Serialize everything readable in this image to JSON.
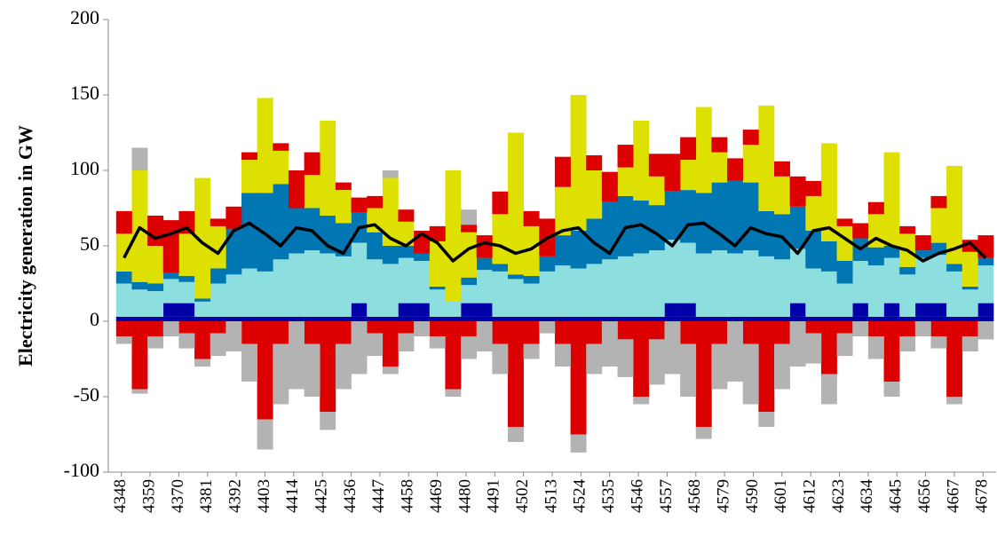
{
  "chart_data": {
    "type": "bar",
    "y_label": "Electricity generation in GW",
    "xlim": [
      4343,
      4683
    ],
    "xticks": [
      4348,
      4359,
      4370,
      4381,
      4392,
      4403,
      4414,
      4425,
      4436,
      4447,
      4458,
      4469,
      4480,
      4491,
      4502,
      4513,
      4524,
      4535,
      4546,
      4557,
      4568,
      4579,
      4590,
      4601,
      4612,
      4623,
      4634,
      4645,
      4656,
      4667,
      4678
    ],
    "ylim": [
      -100,
      200
    ],
    "yticks": [
      -100,
      -50,
      0,
      50,
      100,
      150,
      200
    ],
    "x": [
      4349,
      4355,
      4361,
      4367,
      4373,
      4379,
      4385,
      4391,
      4397,
      4403,
      4409,
      4415,
      4421,
      4427,
      4433,
      4439,
      4445,
      4451,
      4457,
      4463,
      4469,
      4475,
      4481,
      4487,
      4493,
      4499,
      4505,
      4511,
      4517,
      4523,
      4529,
      4535,
      4541,
      4547,
      4553,
      4559,
      4565,
      4571,
      4577,
      4583,
      4589,
      4595,
      4601,
      4607,
      4613,
      4619,
      4625,
      4631,
      4637,
      4643,
      4649,
      4655,
      4661,
      4667,
      4673,
      4679
    ],
    "series": [
      {
        "color": "#0000a8",
        "values": [
          3,
          3,
          3,
          3,
          3,
          3,
          3,
          3,
          3,
          3,
          3,
          3,
          3,
          3,
          3,
          3,
          3,
          3,
          3,
          3,
          3,
          3,
          3,
          3,
          3,
          3,
          3,
          3,
          3,
          3,
          3,
          3,
          3,
          3,
          3,
          3,
          3,
          3,
          3,
          3,
          3,
          3,
          3,
          3,
          3,
          3,
          3,
          3,
          3,
          3,
          3,
          3,
          3,
          3,
          3,
          3
        ]
      },
      {
        "color": "#0000a8",
        "values": [
          0,
          0,
          0,
          9,
          9,
          0,
          0,
          0,
          0,
          0,
          0,
          0,
          0,
          0,
          0,
          9,
          0,
          0,
          9,
          9,
          0,
          0,
          9,
          9,
          0,
          0,
          0,
          0,
          0,
          0,
          0,
          0,
          0,
          0,
          0,
          9,
          9,
          0,
          0,
          0,
          0,
          0,
          0,
          9,
          0,
          0,
          0,
          9,
          0,
          9,
          0,
          9,
          9,
          0,
          0,
          9
        ]
      },
      {
        "color": "#8ddfdf",
        "values": [
          22,
          18,
          17,
          16,
          14,
          10,
          22,
          28,
          32,
          30,
          38,
          42,
          44,
          42,
          40,
          40,
          38,
          35,
          30,
          28,
          18,
          10,
          12,
          22,
          30,
          25,
          22,
          30,
          34,
          32,
          35,
          38,
          40,
          42,
          44,
          42,
          40,
          42,
          44,
          42,
          44,
          40,
          38,
          36,
          32,
          30,
          22,
          28,
          34,
          30,
          28,
          30,
          32,
          30,
          18,
          25
        ]
      },
      {
        "color": "#0077b3",
        "values": [
          8,
          5,
          5,
          4,
          4,
          2,
          10,
          30,
          50,
          52,
          50,
          30,
          28,
          25,
          22,
          20,
          18,
          12,
          8,
          5,
          2,
          0,
          5,
          8,
          5,
          3,
          5,
          10,
          20,
          25,
          30,
          38,
          40,
          35,
          30,
          32,
          35,
          40,
          45,
          48,
          45,
          30,
          30,
          28,
          25,
          20,
          15,
          15,
          12,
          8,
          5,
          5,
          8,
          5,
          2,
          5
        ]
      },
      {
        "color": "#dde000",
        "values": [
          25,
          74,
          25,
          0,
          28,
          80,
          28,
          0,
          22,
          63,
          22,
          0,
          22,
          63,
          22,
          0,
          16,
          45,
          16,
          0,
          30,
          87,
          30,
          0,
          33,
          94,
          33,
          0,
          32,
          90,
          32,
          0,
          19,
          53,
          19,
          0,
          20,
          57,
          20,
          0,
          25,
          70,
          25,
          0,
          23,
          65,
          23,
          0,
          22,
          62,
          22,
          0,
          23,
          65,
          23,
          0
        ]
      },
      {
        "color": "#dd0000",
        "values": [
          15,
          0,
          20,
          35,
          15,
          0,
          5,
          15,
          5,
          0,
          5,
          25,
          15,
          0,
          5,
          10,
          8,
          0,
          8,
          15,
          10,
          0,
          5,
          15,
          15,
          0,
          10,
          25,
          20,
          0,
          10,
          20,
          15,
          0,
          15,
          25,
          15,
          0,
          10,
          15,
          10,
          0,
          10,
          20,
          10,
          0,
          5,
          10,
          8,
          0,
          5,
          10,
          8,
          0,
          8,
          15
        ]
      },
      {
        "color": "#b3b3b3",
        "values": [
          0,
          15,
          0,
          0,
          0,
          0,
          0,
          0,
          0,
          0,
          0,
          0,
          0,
          0,
          0,
          0,
          0,
          5,
          0,
          0,
          0,
          0,
          10,
          0,
          0,
          0,
          0,
          0,
          0,
          0,
          0,
          0,
          0,
          0,
          0,
          0,
          0,
          0,
          0,
          0,
          0,
          0,
          0,
          0,
          0,
          0,
          0,
          0,
          0,
          0,
          0,
          0,
          0,
          0,
          0,
          0
        ]
      },
      {
        "color": "#dd0000",
        "values": [
          -10,
          -45,
          -10,
          0,
          -8,
          -25,
          -8,
          0,
          -15,
          -65,
          -15,
          0,
          -15,
          -60,
          -15,
          0,
          -8,
          -30,
          -8,
          0,
          -10,
          -45,
          -10,
          0,
          -15,
          -70,
          -15,
          0,
          -15,
          -75,
          -15,
          0,
          -12,
          -50,
          -12,
          0,
          -15,
          -70,
          -15,
          0,
          -15,
          -60,
          -15,
          0,
          -8,
          -35,
          -8,
          0,
          -10,
          -40,
          -10,
          0,
          -10,
          -50,
          -10,
          0
        ]
      },
      {
        "color": "#b3b3b3",
        "values": [
          -5,
          -3,
          -8,
          -10,
          -10,
          -5,
          -15,
          -20,
          -25,
          -20,
          -40,
          -45,
          -35,
          -12,
          -30,
          -35,
          -15,
          -5,
          -12,
          -10,
          -8,
          -5,
          -15,
          -20,
          -20,
          -10,
          -10,
          -8,
          -15,
          -12,
          -20,
          -30,
          -25,
          -5,
          -30,
          -35,
          -35,
          -8,
          -30,
          -40,
          -40,
          -10,
          -30,
          -30,
          -20,
          -20,
          -15,
          -10,
          -15,
          -10,
          -10,
          -10,
          -8,
          -5,
          -10,
          -12
        ]
      },
      {
        "type": "line",
        "color": "#000000",
        "values": [
          42,
          62,
          55,
          58,
          62,
          52,
          45,
          60,
          65,
          58,
          50,
          62,
          60,
          50,
          45,
          62,
          64,
          55,
          50,
          58,
          52,
          40,
          48,
          52,
          50,
          45,
          48,
          55,
          60,
          62,
          52,
          45,
          62,
          64,
          58,
          50,
          64,
          65,
          58,
          50,
          62,
          58,
          56,
          45,
          60,
          62,
          55,
          48,
          55,
          50,
          47,
          40,
          45,
          48,
          52,
          42
        ]
      }
    ]
  }
}
